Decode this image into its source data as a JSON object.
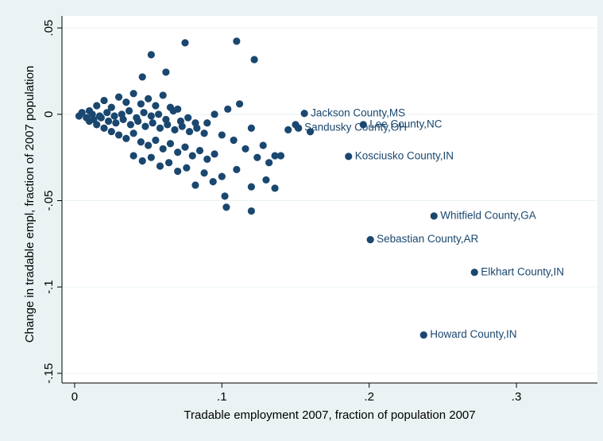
{
  "chart_data": {
    "type": "scatter",
    "xlabel": "Tradable employment 2007, fraction of population 2007",
    "ylabel": "Change in tradable empl, fraction of 2007 population",
    "color": "#1a476f",
    "grid": true,
    "xlim": [
      -0.0086,
      0.355
    ],
    "ylim": [
      -0.1556,
      0.051
    ],
    "xticks": [
      0,
      {
        "value": 0.1,
        "label": ".1"
      },
      {
        "value": 0.2,
        "label": ".2"
      },
      {
        "value": 0.3,
        "label": ".3"
      }
    ],
    "yticks": [
      {
        "value": 0.05,
        "label": ".05"
      },
      0,
      {
        "value": -0.05,
        "label": "-.05"
      },
      {
        "value": -0.1,
        "label": "-.1"
      },
      {
        "value": -0.15,
        "label": "-.15"
      }
    ],
    "x": [
      0.005,
      0.01,
      0.015,
      0.02,
      0.025,
      0.03,
      0.035,
      0.04,
      0.045,
      0.05,
      0.055,
      0.06,
      0.065,
      0.07,
      0.003,
      0.008,
      0.013,
      0.018,
      0.023,
      0.028,
      0.033,
      0.038,
      0.043,
      0.048,
      0.053,
      0.058,
      0.063,
      0.068,
      0.073,
      0.078,
      0.083,
      0.088,
      0.01,
      0.015,
      0.02,
      0.025,
      0.03,
      0.035,
      0.04,
      0.045,
      0.05,
      0.055,
      0.06,
      0.065,
      0.07,
      0.075,
      0.08,
      0.085,
      0.09,
      0.095,
      0.04,
      0.046,
      0.052,
      0.058,
      0.064,
      0.07,
      0.076,
      0.082,
      0.088,
      0.094,
      0.1,
      0.11,
      0.12,
      0.13,
      0.012,
      0.017,
      0.022,
      0.027,
      0.032,
      0.037,
      0.042,
      0.047,
      0.052,
      0.057,
      0.062,
      0.067,
      0.072,
      0.077,
      0.082,
      0.09,
      0.095,
      0.1,
      0.104,
      0.108,
      0.112,
      0.116,
      0.12,
      0.124,
      0.128,
      0.132,
      0.136,
      0.14,
      0.145,
      0.15,
      0.152,
      0.075,
      0.11,
      0.122,
      0.052,
      0.062,
      0.046,
      0.102,
      0.103,
      0.12,
      0.136,
      0.16
    ],
    "values": [
      0.001,
      0.002,
      0.005,
      0.008,
      0.004,
      0.01,
      0.007,
      0.012,
      0.006,
      0.009,
      0.005,
      0.011,
      0.004,
      0.003,
      -0.001,
      -0.002,
      -0.003,
      -0.002,
      -0.004,
      -0.005,
      -0.003,
      -0.006,
      -0.004,
      -0.007,
      -0.005,
      -0.008,
      -0.006,
      -0.009,
      -0.007,
      -0.01,
      -0.008,
      -0.011,
      -0.004,
      -0.006,
      -0.008,
      -0.01,
      -0.012,
      -0.014,
      -0.011,
      -0.016,
      -0.018,
      -0.015,
      -0.02,
      -0.017,
      -0.022,
      -0.019,
      -0.024,
      -0.021,
      -0.026,
      -0.023,
      -0.024,
      -0.027,
      -0.025,
      -0.03,
      -0.028,
      -0.033,
      -0.031,
      -0.041,
      -0.034,
      -0.039,
      -0.036,
      -0.032,
      -0.042,
      -0.038,
      0.0,
      -0.001,
      0.001,
      -0.001,
      0.0,
      0.002,
      -0.002,
      0.001,
      -0.001,
      0.0,
      -0.003,
      0.002,
      -0.004,
      -0.002,
      -0.005,
      -0.005,
      0.0,
      -0.012,
      0.003,
      -0.015,
      0.006,
      -0.02,
      -0.008,
      -0.025,
      -0.018,
      -0.028,
      -0.024,
      -0.024,
      -0.009,
      -0.006,
      -0.008,
      0.0414,
      0.0423,
      0.0317,
      0.0345,
      0.0244,
      0.0216,
      -0.0474,
      -0.0538,
      -0.056,
      -0.0428,
      -0.0101
    ],
    "labeled_points": [
      {
        "label": "Jackson County,MS",
        "x": 0.156,
        "y": 0.0005
      },
      {
        "label": "Sandusky County,OH",
        "x": 0.1517,
        "y": -0.0078
      },
      {
        "label": "Lee County,NC",
        "x": 0.196,
        "y": -0.006
      },
      {
        "label": "Kosciusko County,IN",
        "x": 0.186,
        "y": -0.0244
      },
      {
        "label": "Whitfield County,GA",
        "x": 0.244,
        "y": -0.0589
      },
      {
        "label": "Sebastian County,AR",
        "x": 0.2008,
        "y": -0.0726
      },
      {
        "label": "Elkhart County,IN",
        "x": 0.2715,
        "y": -0.0915
      },
      {
        "label": "Howard County,IN",
        "x": 0.237,
        "y": -0.1278
      }
    ]
  }
}
